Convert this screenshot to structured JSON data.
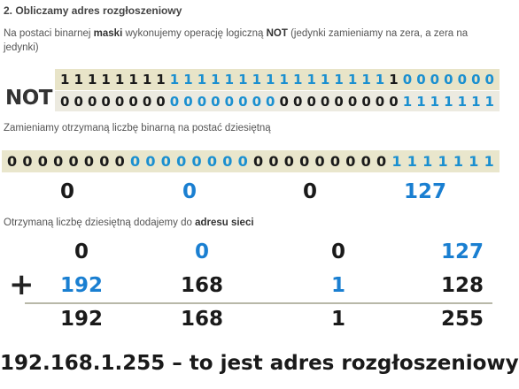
{
  "heading": "2. Obliczamy adres rozgłoszeniowy",
  "intro": {
    "pre": "Na postaci binarnej ",
    "b1": "maski",
    "mid": " wykonujemy operację logiczną ",
    "b2": "NOT",
    "post": " (jedynki zamieniamy na zera, a zera na jedynki)"
  },
  "mask_bits": "11111111111111111111111110000000",
  "not_label": "NOT",
  "not_bits": "00000000000000000000000001111111",
  "convert_text": "Zamieniamy otrzymaną liczbę binarną na postać dziesiętną",
  "result_bits": "00000000000000000000000001111111",
  "decimal_octets": [
    "0",
    "0",
    "0",
    "127"
  ],
  "add_text": {
    "pre": "Otrzymaną liczbę dziesiętną dodajemy do ",
    "bold": "adresu sieci"
  },
  "addend1": [
    "0",
    "0",
    "0",
    "127"
  ],
  "plus_sign": "+",
  "addend2": [
    "192",
    "168",
    "1",
    "128"
  ],
  "sum": [
    "192",
    "168",
    "1",
    "255"
  ],
  "colors": {
    "blue": "#1a8fd0",
    "dark": "#1a1a1a",
    "bar_bg": "#e8e4c8"
  },
  "final_text": "192.168.1.255 – to jest adres rozgłoszeniowy"
}
